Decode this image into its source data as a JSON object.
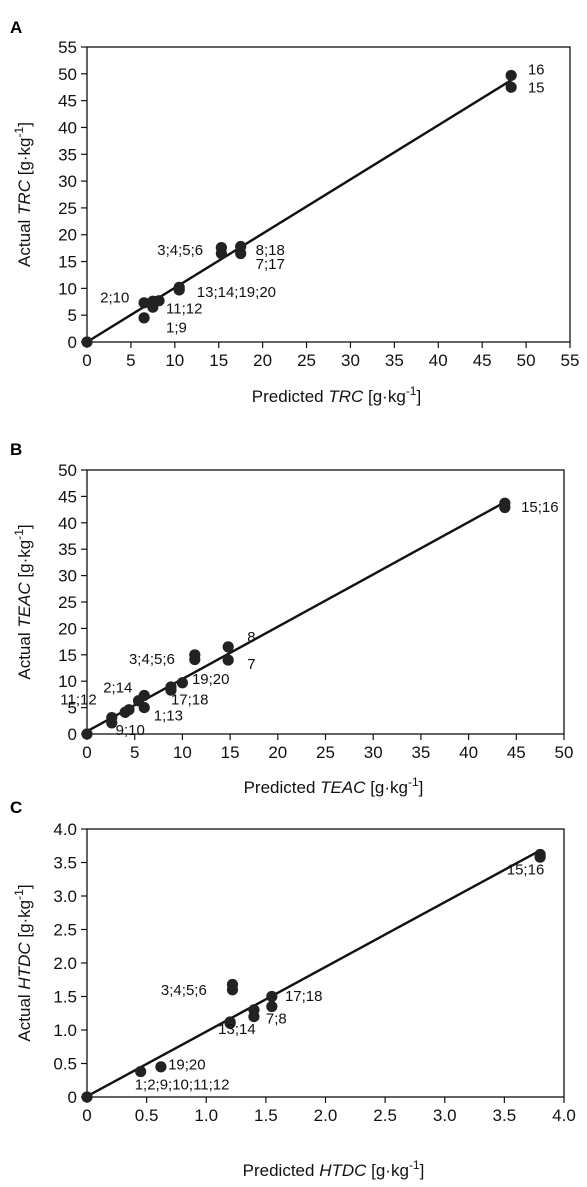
{
  "chart_data": [
    {
      "panel": "A",
      "type": "scatter",
      "xlabel": {
        "pre": "Predicted ",
        "em": "TRC",
        "post": " [g·kg",
        "sup": "-1",
        "end": "]"
      },
      "ylabel": {
        "pre": "Actual ",
        "em": "TRC",
        "post": " [g·kg",
        "sup": "-1",
        "end": "]"
      },
      "xlim": [
        0,
        55
      ],
      "ylim": [
        0,
        55
      ],
      "xticks": [
        0,
        5,
        10,
        15,
        20,
        25,
        30,
        35,
        40,
        45,
        50,
        55
      ],
      "yticks": [
        0,
        5,
        10,
        15,
        20,
        25,
        30,
        35,
        40,
        45,
        50,
        55
      ],
      "tick_labels_x": [
        "0",
        "5",
        "10",
        "15",
        "20",
        "25",
        "30",
        "35",
        "40",
        "45",
        "50",
        "55"
      ],
      "tick_labels_y": [
        "0",
        "5",
        "10",
        "15",
        "20",
        "25",
        "30",
        "35",
        "40",
        "45",
        "50",
        "55"
      ],
      "points": [
        [
          0,
          0
        ],
        [
          6.5,
          4.5
        ],
        [
          6.5,
          7.3
        ],
        [
          7.5,
          6.5
        ],
        [
          7.5,
          7.6
        ],
        [
          8.2,
          7.7
        ],
        [
          10.5,
          9.7
        ],
        [
          10.5,
          10.2
        ],
        [
          15.3,
          16.5
        ],
        [
          15.3,
          17.6
        ],
        [
          17.5,
          16.5
        ],
        [
          17.5,
          17.8
        ],
        [
          48.3,
          47.5
        ],
        [
          48.3,
          49.7
        ]
      ],
      "fit_line": [
        [
          0,
          0
        ],
        [
          48.3,
          48.8
        ]
      ],
      "annotations": [
        {
          "text": "16",
          "x": 50.2,
          "y": 49.9
        },
        {
          "text": "15",
          "x": 50.2,
          "y": 46.5
        },
        {
          "text": "3;4;5;6",
          "x": 8.0,
          "y": 16.2
        },
        {
          "text": "8;18",
          "x": 19.2,
          "y": 16.2
        },
        {
          "text": "7;17",
          "x": 19.2,
          "y": 13.6
        },
        {
          "text": "2;10",
          "x": 1.5,
          "y": 7.4
        },
        {
          "text": "13;14;19;20",
          "x": 12.5,
          "y": 8.4
        },
        {
          "text": "11;12",
          "x": 9.0,
          "y": 5.3
        },
        {
          "text": "1;9",
          "x": 9.0,
          "y": 1.8
        }
      ]
    },
    {
      "panel": "B",
      "type": "scatter",
      "xlabel": {
        "pre": "Predicted ",
        "em": "TEAC",
        "post": " [g·kg",
        "sup": "-1",
        "end": "]"
      },
      "ylabel": {
        "pre": "Actual ",
        "em": "TEAC",
        "post": " [g·kg",
        "sup": "-1",
        "end": "]"
      },
      "xlim": [
        0,
        50
      ],
      "ylim": [
        0,
        50
      ],
      "xticks": [
        0,
        5,
        10,
        15,
        20,
        25,
        30,
        35,
        40,
        45,
        50
      ],
      "yticks": [
        0,
        5,
        10,
        15,
        20,
        25,
        30,
        35,
        40,
        45,
        50
      ],
      "tick_labels_x": [
        "0",
        "5",
        "10",
        "15",
        "20",
        "25",
        "30",
        "35",
        "40",
        "45",
        "50"
      ],
      "tick_labels_y": [
        "0",
        "5",
        "10",
        "15",
        "20",
        "25",
        "30",
        "35",
        "40",
        "45",
        "50"
      ],
      "points": [
        [
          0,
          0
        ],
        [
          2.6,
          2.1
        ],
        [
          2.6,
          3.1
        ],
        [
          4.0,
          4.1
        ],
        [
          4.4,
          4.6
        ],
        [
          5.4,
          6.3
        ],
        [
          6.0,
          5.0
        ],
        [
          6.0,
          7.3
        ],
        [
          8.8,
          8.3
        ],
        [
          8.8,
          8.9
        ],
        [
          10.0,
          9.7
        ],
        [
          11.3,
          14.1
        ],
        [
          11.3,
          15.0
        ],
        [
          14.8,
          14.0
        ],
        [
          14.8,
          16.5
        ],
        [
          43.8,
          42.9
        ],
        [
          43.8,
          43.7
        ]
      ],
      "fit_line": [
        [
          0,
          0.5
        ],
        [
          43.8,
          43.9
        ]
      ],
      "annotations": [
        {
          "text": "15;16",
          "x": 45.5,
          "y": 42.0
        },
        {
          "text": "8",
          "x": 16.8,
          "y": 17.4
        },
        {
          "text": "7",
          "x": 16.8,
          "y": 12.3
        },
        {
          "text": "3;4;5;6",
          "x": 4.4,
          "y": 13.3
        },
        {
          "text": "19;20",
          "x": 11.0,
          "y": 9.5
        },
        {
          "text": "2;14",
          "x": 1.7,
          "y": 7.9
        },
        {
          "text": "17;18",
          "x": 8.8,
          "y": 5.6
        },
        {
          "text": "11;12",
          "x": -2.8,
          "y": 5.6
        },
        {
          "text": "1;13",
          "x": 7.0,
          "y": 2.6
        },
        {
          "text": "9;10",
          "x": 3.0,
          "y": -0.2
        }
      ]
    },
    {
      "panel": "C",
      "type": "scatter",
      "xlabel": {
        "pre": "Predicted ",
        "em": "HTDC",
        "post": " [g·kg",
        "sup": "-1",
        "end": "]"
      },
      "ylabel": {
        "pre": "Actual ",
        "em": "HTDC",
        "post": " [g·kg",
        "sup": "-1",
        "end": "]"
      },
      "xlim": [
        0,
        4.0
      ],
      "ylim": [
        0,
        4.0
      ],
      "xticks": [
        0,
        0.5,
        1.0,
        1.5,
        2.0,
        2.5,
        3.0,
        3.5,
        4.0
      ],
      "yticks": [
        0,
        0.5,
        1.0,
        1.5,
        2.0,
        2.5,
        3.0,
        3.5,
        4.0
      ],
      "tick_labels_x": [
        "0",
        "0.5",
        "1.0",
        "1.5",
        "2.0",
        "2.5",
        "3.0",
        "3.5",
        "4.0"
      ],
      "tick_labels_y": [
        "0",
        "0.5",
        "1.0",
        "1.5",
        "2.0",
        "2.5",
        "3.0",
        "3.5",
        "4.0"
      ],
      "points": [
        [
          0,
          0
        ],
        [
          0.45,
          0.38
        ],
        [
          0.62,
          0.45
        ],
        [
          1.2,
          1.1
        ],
        [
          1.2,
          1.12
        ],
        [
          1.22,
          1.6
        ],
        [
          1.22,
          1.68
        ],
        [
          1.4,
          1.2
        ],
        [
          1.4,
          1.3
        ],
        [
          1.55,
          1.35
        ],
        [
          1.55,
          1.5
        ],
        [
          3.8,
          3.58
        ],
        [
          3.8,
          3.62
        ]
      ],
      "fit_line": [
        [
          0,
          0.01
        ],
        [
          3.8,
          3.68
        ]
      ],
      "annotations": [
        {
          "text": "15;16",
          "x": 3.52,
          "y": 3.32
        },
        {
          "text": "3;4;5;6",
          "x": 0.62,
          "y": 1.52
        },
        {
          "text": "17;18",
          "x": 1.66,
          "y": 1.43
        },
        {
          "text": "7;8",
          "x": 1.5,
          "y": 1.1
        },
        {
          "text": "13;14",
          "x": 1.1,
          "y": 0.94
        },
        {
          "text": "19;20",
          "x": 0.68,
          "y": 0.41
        },
        {
          "text": "1;2;9;10;11;12",
          "x": 0.4,
          "y": 0.11
        }
      ]
    }
  ]
}
